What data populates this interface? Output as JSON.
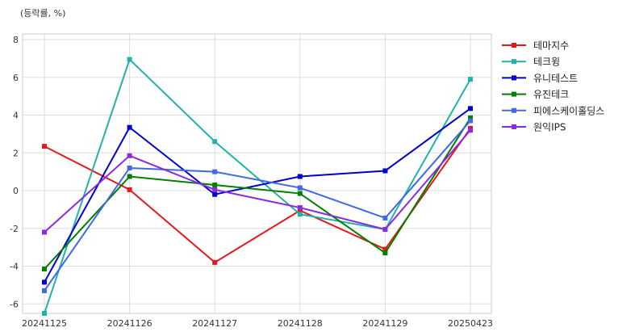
{
  "chart_data": {
    "type": "line",
    "ylabel": "(등락률, %)",
    "categories": [
      "20241125",
      "20241126",
      "20241127",
      "20241128",
      "20241129",
      "20250423"
    ],
    "yticks": [
      -6,
      -4,
      -2,
      0,
      2,
      4,
      6,
      8
    ],
    "ylim": [
      -6.5,
      8.3
    ],
    "grid": true,
    "legend_position": "right",
    "series": [
      {
        "name": "테마지수",
        "color": "#e31a1c",
        "values": [
          2.35,
          0.05,
          -3.8,
          -1.05,
          -3.1,
          3.3
        ]
      },
      {
        "name": "테크윙",
        "color": "#20b2aa",
        "values": [
          -6.5,
          6.95,
          2.6,
          -1.25,
          -2.05,
          5.9
        ]
      },
      {
        "name": "유니테스트",
        "color": "#0000cd",
        "values": [
          -4.85,
          3.35,
          -0.2,
          0.75,
          1.05,
          4.35
        ]
      },
      {
        "name": "유진테크",
        "color": "#008000",
        "values": [
          -4.15,
          0.75,
          0.3,
          -0.15,
          -3.3,
          3.85
        ]
      },
      {
        "name": "피에스케이홀딩스",
        "color": "#4169e1",
        "values": [
          -5.3,
          1.2,
          1.0,
          0.15,
          -1.45,
          3.7
        ]
      },
      {
        "name": "원익IPS",
        "color": "#8a2be2",
        "values": [
          -2.2,
          1.85,
          0.05,
          -0.9,
          -2.05,
          3.2
        ]
      }
    ]
  }
}
